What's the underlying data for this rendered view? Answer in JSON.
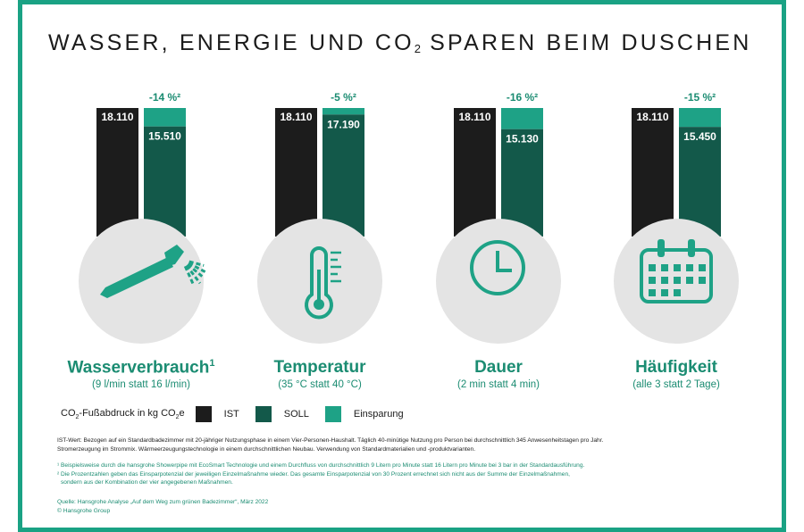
{
  "title": {
    "main": "WASSER, ENERGIE UND CO",
    "sub": "2",
    "tail": " SPAREN BEIM DUSCHEN"
  },
  "colors": {
    "ist": "#1c1c1c",
    "soll": "#13594a",
    "einsparung": "#1ea286",
    "circle": "#e4e4e4",
    "text_green": "#1b8c72"
  },
  "chart_data": [
    {
      "type": "bar",
      "categories": [
        "IST",
        "SOLL"
      ],
      "values": [
        18110,
        15510
      ],
      "ist_label": "18.110",
      "soll_label": "15.510",
      "saving_label": "-14 %²",
      "ylim": [
        0,
        18110
      ]
    },
    {
      "type": "bar",
      "categories": [
        "IST",
        "SOLL"
      ],
      "values": [
        18110,
        17190
      ],
      "ist_label": "18.110",
      "soll_label": "17.190",
      "saving_label": "-5 %²",
      "ylim": [
        0,
        18110
      ]
    },
    {
      "type": "bar",
      "categories": [
        "IST",
        "SOLL"
      ],
      "values": [
        18110,
        15130
      ],
      "ist_label": "18.110",
      "soll_label": "15.130",
      "saving_label": "-16 %²",
      "ylim": [
        0,
        18110
      ]
    },
    {
      "type": "bar",
      "categories": [
        "IST",
        "SOLL"
      ],
      "values": [
        18110,
        15450
      ],
      "ist_label": "18.110",
      "soll_label": "15.450",
      "saving_label": "-15 %²",
      "ylim": [
        0,
        18110
      ]
    }
  ],
  "columns": [
    {
      "title": "Wasserverbrauch",
      "title_sup": "1",
      "subtitle": "(9 l/min statt 16 l/min)",
      "icon": "shower-head-icon"
    },
    {
      "title": "Temperatur",
      "title_sup": "",
      "subtitle": "(35 °C statt 40 °C)",
      "icon": "thermometer-icon"
    },
    {
      "title": "Dauer",
      "title_sup": "",
      "subtitle": "(2 min statt 4 min)",
      "icon": "clock-icon"
    },
    {
      "title": "Häufigkeit",
      "title_sup": "",
      "subtitle": "(alle 3 statt 2 Tage)",
      "icon": "calendar-icon"
    }
  ],
  "legend": {
    "caption_pre": "CO",
    "caption_sub": "2",
    "caption_mid": "-Fußabdruck in kg CO",
    "caption_sub2": "2",
    "caption_post": "e",
    "items": [
      "IST",
      "SOLL",
      "Einsparung"
    ]
  },
  "notes": {
    "ist_1": "IST-Wert: Bezogen auf ein Standardbadezimmer mit 20-jähriger Nutzungsphase in einem Vier-Personen-Haushalt. Täglich 40-minütige Nutzung pro Person bei durchschnittlich 345 Anwesenheitstagen pro Jahr.",
    "ist_2": "Stromerzeugung im Strommix. Wärmeerzeugungstechnologie in einem durchschnittlichen Neubau. Verwendung von Standardmaterialien und -produktvarianten.",
    "fn1": "¹ Beispielsweise durch die hansgrohe Showerpipe mit EcoSmart Technologie und einem Durchfluss von durchschnittlich 9 Litern pro Minute statt 16 Litern pro Minute bei 3 bar in der Standardausführung.",
    "fn2": "² Die Prozentzahlen geben das Einsparpotenzial der jeweiligen Einzelmaßnahme wieder. Das gesamte Einsparpotenzial von 30 Prozent errechnet sich nicht aus der Summe der Einzelmaßnahmen,",
    "fn2b": "sondern aus der Kombination der vier angegebenen Maßnahmen.",
    "source": "Quelle: Hansgrohe Analyse „Auf dem Weg zum grünen Badezimmer“, März 2022",
    "copyright": "© Hansgrohe Group"
  }
}
